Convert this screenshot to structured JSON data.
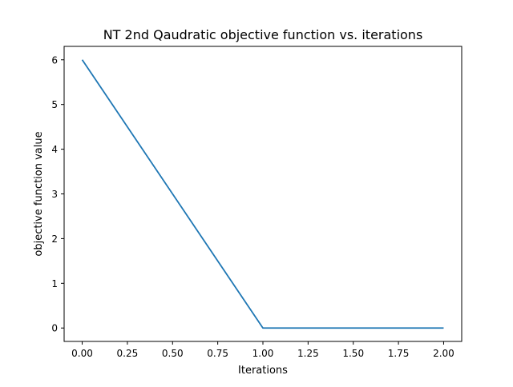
{
  "chart_data": {
    "type": "line",
    "title": "NT 2nd Qaudratic objective function vs. iterations",
    "xlabel": "Iterations",
    "ylabel": "objective function value",
    "xlim": [
      -0.1,
      2.1
    ],
    "ylim": [
      -0.3,
      6.3
    ],
    "xticks": [
      0.0,
      0.25,
      0.5,
      0.75,
      1.0,
      1.25,
      1.5,
      1.75,
      2.0
    ],
    "xtick_labels": [
      "0.00",
      "0.25",
      "0.50",
      "0.75",
      "1.00",
      "1.25",
      "1.50",
      "1.75",
      "2.00"
    ],
    "yticks": [
      0,
      1,
      2,
      3,
      4,
      5,
      6
    ],
    "ytick_labels": [
      "0",
      "1",
      "2",
      "3",
      "4",
      "5",
      "6"
    ],
    "grid": false,
    "series": [
      {
        "x": [
          0,
          1,
          2
        ],
        "values": [
          6,
          0,
          0
        ],
        "color": "#1f77b4"
      }
    ]
  }
}
